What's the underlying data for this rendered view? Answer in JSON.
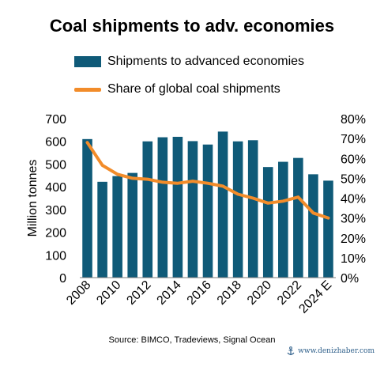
{
  "chart_data": {
    "type": "bar",
    "title": "Coal shipments to adv. economies",
    "ylabel": "Million tonnes",
    "ylim": [
      0,
      700
    ],
    "y2lim": [
      0,
      0.8
    ],
    "yticks": [
      "0",
      "100",
      "200",
      "300",
      "400",
      "500",
      "600",
      "700"
    ],
    "y2ticks": [
      "0%",
      "10%",
      "20%",
      "30%",
      "40%",
      "50%",
      "60%",
      "70%",
      "80%"
    ],
    "categories": [
      "2008",
      "2009",
      "2010",
      "2011",
      "2012",
      "2013",
      "2014",
      "2015",
      "2016",
      "2017",
      "2018",
      "2019",
      "2020",
      "2021",
      "2022",
      "2023",
      "2024 E"
    ],
    "xtick_labels": [
      "2008",
      "",
      "2010",
      "",
      "2012",
      "",
      "2014",
      "",
      "2016",
      "",
      "2018",
      "",
      "2020",
      "",
      "2022",
      "",
      "2024 E"
    ],
    "series": [
      {
        "name": "Shipments to advanced economies",
        "type": "bar",
        "axis": "left",
        "color": "#0f5a78",
        "values": [
          610,
          422,
          447,
          461,
          600,
          618,
          620,
          601,
          586,
          643,
          600,
          605,
          487,
          510,
          527,
          455,
          427
        ]
      },
      {
        "name": "Share of global coal shipments",
        "type": "line",
        "axis": "right",
        "color": "#f28c2a",
        "values": [
          0.68,
          0.565,
          0.52,
          0.5,
          0.495,
          0.48,
          0.475,
          0.485,
          0.475,
          0.46,
          0.42,
          0.4,
          0.375,
          0.385,
          0.405,
          0.325,
          0.3
        ]
      }
    ],
    "grid": false,
    "legend_position": "top"
  },
  "source_text": "Source: BIMCO, Tradeviews, Signal Ocean",
  "watermark_text": "www.denizhaber.com"
}
